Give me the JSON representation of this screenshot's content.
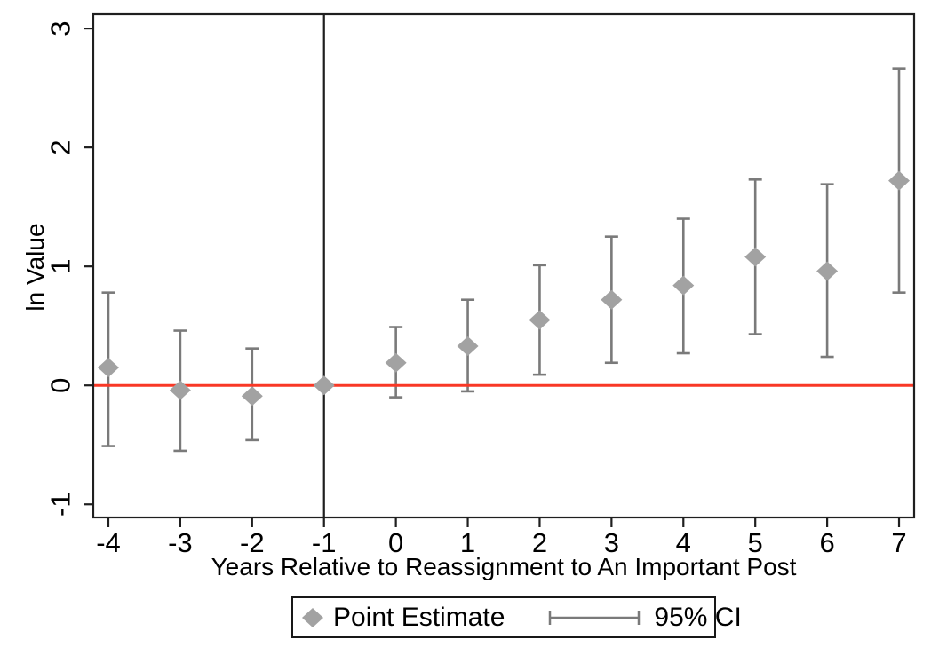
{
  "chart_data": {
    "type": "scatter",
    "subtype": "event-study coefficient plot with 95% confidence intervals",
    "title": "",
    "xlabel": "Years Relative to Reassignment to An Important Post",
    "ylabel": "ln Value",
    "x_ticks": [
      -4,
      -3,
      -2,
      -1,
      0,
      1,
      2,
      3,
      4,
      5,
      6,
      7
    ],
    "y_ticks": [
      -1,
      0,
      1,
      2,
      3
    ],
    "xlim": [
      -4.21,
      7.21
    ],
    "ylim": [
      -1.11,
      3.12
    ],
    "grid": false,
    "reference_vline_x": -1,
    "zero_hline_y": 0,
    "points": [
      {
        "x": -4,
        "estimate": 0.15,
        "ci_low": -0.51,
        "ci_high": 0.78
      },
      {
        "x": -3,
        "estimate": -0.04,
        "ci_low": -0.55,
        "ci_high": 0.46
      },
      {
        "x": -2,
        "estimate": -0.09,
        "ci_low": -0.46,
        "ci_high": 0.31
      },
      {
        "x": -1,
        "estimate": 0.0,
        "ci_low": null,
        "ci_high": null
      },
      {
        "x": 0,
        "estimate": 0.19,
        "ci_low": -0.1,
        "ci_high": 0.49
      },
      {
        "x": 1,
        "estimate": 0.33,
        "ci_low": -0.05,
        "ci_high": 0.72
      },
      {
        "x": 2,
        "estimate": 0.55,
        "ci_low": 0.09,
        "ci_high": 1.01
      },
      {
        "x": 3,
        "estimate": 0.72,
        "ci_low": 0.19,
        "ci_high": 1.25
      },
      {
        "x": 4,
        "estimate": 0.84,
        "ci_low": 0.27,
        "ci_high": 1.4
      },
      {
        "x": 5,
        "estimate": 1.08,
        "ci_low": 0.43,
        "ci_high": 1.73
      },
      {
        "x": 6,
        "estimate": 0.96,
        "ci_low": 0.24,
        "ci_high": 1.69
      },
      {
        "x": 7,
        "estimate": 1.72,
        "ci_low": 0.78,
        "ci_high": 2.66
      }
    ],
    "legend": {
      "position": "bottom-center",
      "items": [
        {
          "label": "Point Estimate",
          "marker": "diamond"
        },
        {
          "label": "95% CI",
          "marker": "errorbar"
        }
      ]
    },
    "colors": {
      "marker": "#a2a2a2",
      "ci": "#7a7a7a",
      "zero_line": "#f93826",
      "reference_line": "#1f1f1f",
      "axis": "#1f1f1f",
      "text": "#000000",
      "background": "#ffffff"
    }
  }
}
